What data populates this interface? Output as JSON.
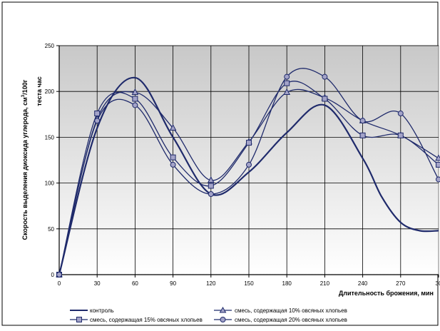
{
  "chart_data": {
    "type": "line",
    "xlabel": "Длительность брожения, мин",
    "ylabel_line1": "Скорость выделения диоксида углерода, см",
    "ylabel_sup": "3",
    "ylabel_line1_end": "/100г",
    "ylabel_line2": "теста час",
    "x_ticks": [
      "0",
      "30",
      "60",
      "90",
      "120",
      "150",
      "180",
      "210",
      "240",
      "270",
      "30"
    ],
    "y_ticks": [
      "0",
      "50",
      "100",
      "150",
      "200",
      "250"
    ],
    "xlim": [
      0,
      300
    ],
    "ylim": [
      0,
      250
    ],
    "grid": true,
    "legend_position": "bottom",
    "series": [
      {
        "name": "контроль",
        "marker": "none",
        "color": "#1f2a6b",
        "x": [
          0,
          30,
          60,
          90,
          120,
          150,
          180,
          210,
          240,
          255,
          270,
          285,
          300
        ],
        "y": [
          0,
          160,
          215,
          150,
          88,
          112,
          155,
          185,
          127,
          85,
          57,
          48,
          48
        ]
      },
      {
        "name": "смесь, содержащая 10% овсяных хлопьев",
        "marker": "triangle",
        "color": "#1f2a6b",
        "x": [
          0,
          30,
          60,
          90,
          120,
          150,
          180,
          210,
          240,
          270,
          300
        ],
        "y": [
          0,
          170,
          199,
          160,
          103,
          145,
          199,
          193,
          168,
          152,
          127
        ]
      },
      {
        "name": "смесь, содержащая 15% овсяных хлопьев",
        "marker": "square",
        "color": "#1f2a6b",
        "x": [
          0,
          30,
          60,
          90,
          120,
          150,
          180,
          210,
          240,
          270,
          300
        ],
        "y": [
          0,
          176,
          192,
          128,
          97,
          144,
          209,
          192,
          152,
          152,
          120
        ]
      },
      {
        "name": "смесь, содержащая 20% овсяных хлопьев",
        "marker": "circle",
        "color": "#1f2a6b",
        "x": [
          0,
          30,
          60,
          90,
          120,
          150,
          180,
          210,
          240,
          270,
          300
        ],
        "y": [
          0,
          168,
          185,
          120,
          88,
          120,
          216,
          216,
          168,
          176,
          104
        ]
      }
    ]
  }
}
